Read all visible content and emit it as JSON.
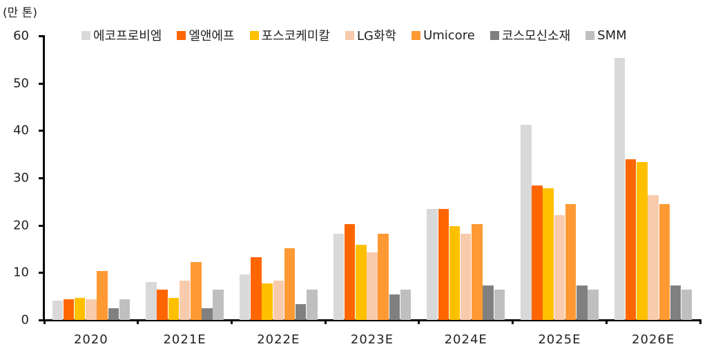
{
  "chart_data": {
    "type": "bar",
    "title": "",
    "unit_label": "(만 톤)",
    "xlabel": "",
    "ylabel": "(만 톤)",
    "ylim": [
      0,
      60
    ],
    "yticks": [
      0,
      10,
      20,
      30,
      40,
      50,
      60
    ],
    "grid": false,
    "legend_position": "top",
    "categories": [
      "2020",
      "2021E",
      "2022E",
      "2023E",
      "2024E",
      "2025E",
      "2026E"
    ],
    "series": [
      {
        "name": "에코프로비엠",
        "color": "#d9d9d9",
        "values": [
          4.1,
          8.0,
          9.6,
          18.2,
          23.5,
          41.2,
          55.3
        ]
      },
      {
        "name": "엘앤에프",
        "color": "#ff6600",
        "values": [
          4.4,
          6.4,
          13.3,
          20.2,
          23.5,
          28.4,
          33.9
        ]
      },
      {
        "name": "포스코케미칼",
        "color": "#ffc000",
        "values": [
          4.7,
          4.7,
          7.7,
          15.9,
          19.8,
          27.8,
          33.3
        ]
      },
      {
        "name": "LG화학",
        "color": "#f8cbad",
        "values": [
          4.4,
          8.3,
          8.3,
          14.3,
          18.2,
          22.1,
          26.3
        ]
      },
      {
        "name": "Umicore",
        "color": "#ff9933",
        "values": [
          10.3,
          12.2,
          15.2,
          18.2,
          20.2,
          24.5,
          24.5
        ]
      },
      {
        "name": "코스모신소재",
        "color": "#808080",
        "values": [
          2.5,
          2.5,
          3.3,
          5.4,
          7.3,
          7.3,
          7.3
        ]
      },
      {
        "name": "SMM",
        "color": "#bfbfbf",
        "values": [
          4.4,
          6.4,
          6.4,
          6.4,
          6.4,
          6.4,
          6.4
        ]
      }
    ]
  }
}
